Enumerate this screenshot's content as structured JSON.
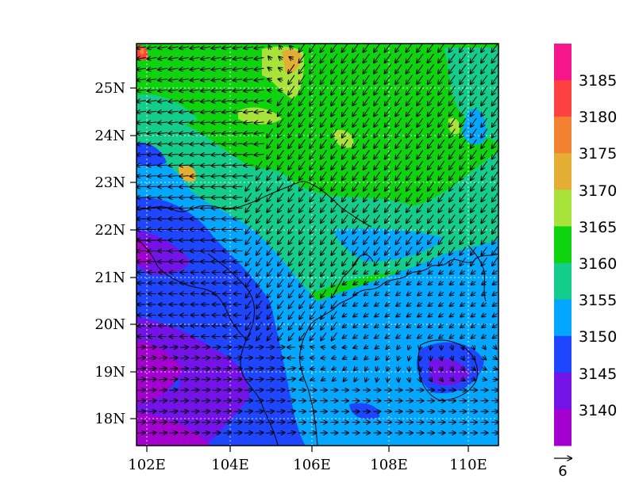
{
  "map": {
    "lon_labels": [
      "102E",
      "104E",
      "106E",
      "108E",
      "110E"
    ],
    "lat_labels": [
      "25N",
      "24N",
      "23N",
      "22N",
      "21N",
      "20N",
      "19N",
      "18N"
    ],
    "lon_range": [
      101.7,
      110.7
    ],
    "lat_range": [
      17.4,
      25.9
    ]
  },
  "colorbar": {
    "labels": [
      "3185",
      "3180",
      "3175",
      "3170",
      "3165",
      "3160",
      "3155",
      "3150",
      "3145",
      "3140"
    ],
    "colors": [
      "#f5168c",
      "#fd4040",
      "#f28232",
      "#e4ad33",
      "#a8e33c",
      "#0fd30f",
      "#14cc8c",
      "#04a7ff",
      "#1f46ff",
      "#7413e8",
      "#a400d0"
    ]
  },
  "reference_vector": {
    "label": "6"
  }
}
